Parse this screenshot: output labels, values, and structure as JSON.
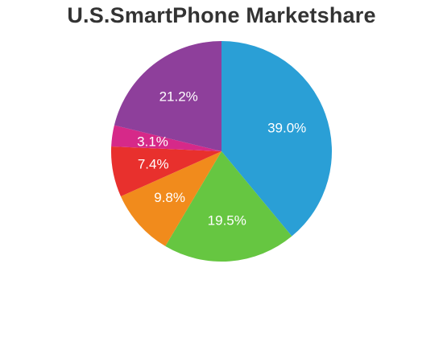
{
  "chart_data": {
    "type": "pie",
    "title": "U.S.SmartPhone Marketshare",
    "slices": [
      {
        "value": 39.0,
        "label": "39.0%",
        "color": "#2a9fd6"
      },
      {
        "value": 19.5,
        "label": "19.5%",
        "color": "#66c641"
      },
      {
        "value": 9.8,
        "label": "9.8%",
        "color": "#f18b1c"
      },
      {
        "value": 7.4,
        "label": "7.4%",
        "color": "#e8302d"
      },
      {
        "value": 3.1,
        "label": "3.1%",
        "color": "#d62989"
      },
      {
        "value": 21.2,
        "label": "21.2%",
        "color": "#8e3f9b"
      }
    ]
  }
}
